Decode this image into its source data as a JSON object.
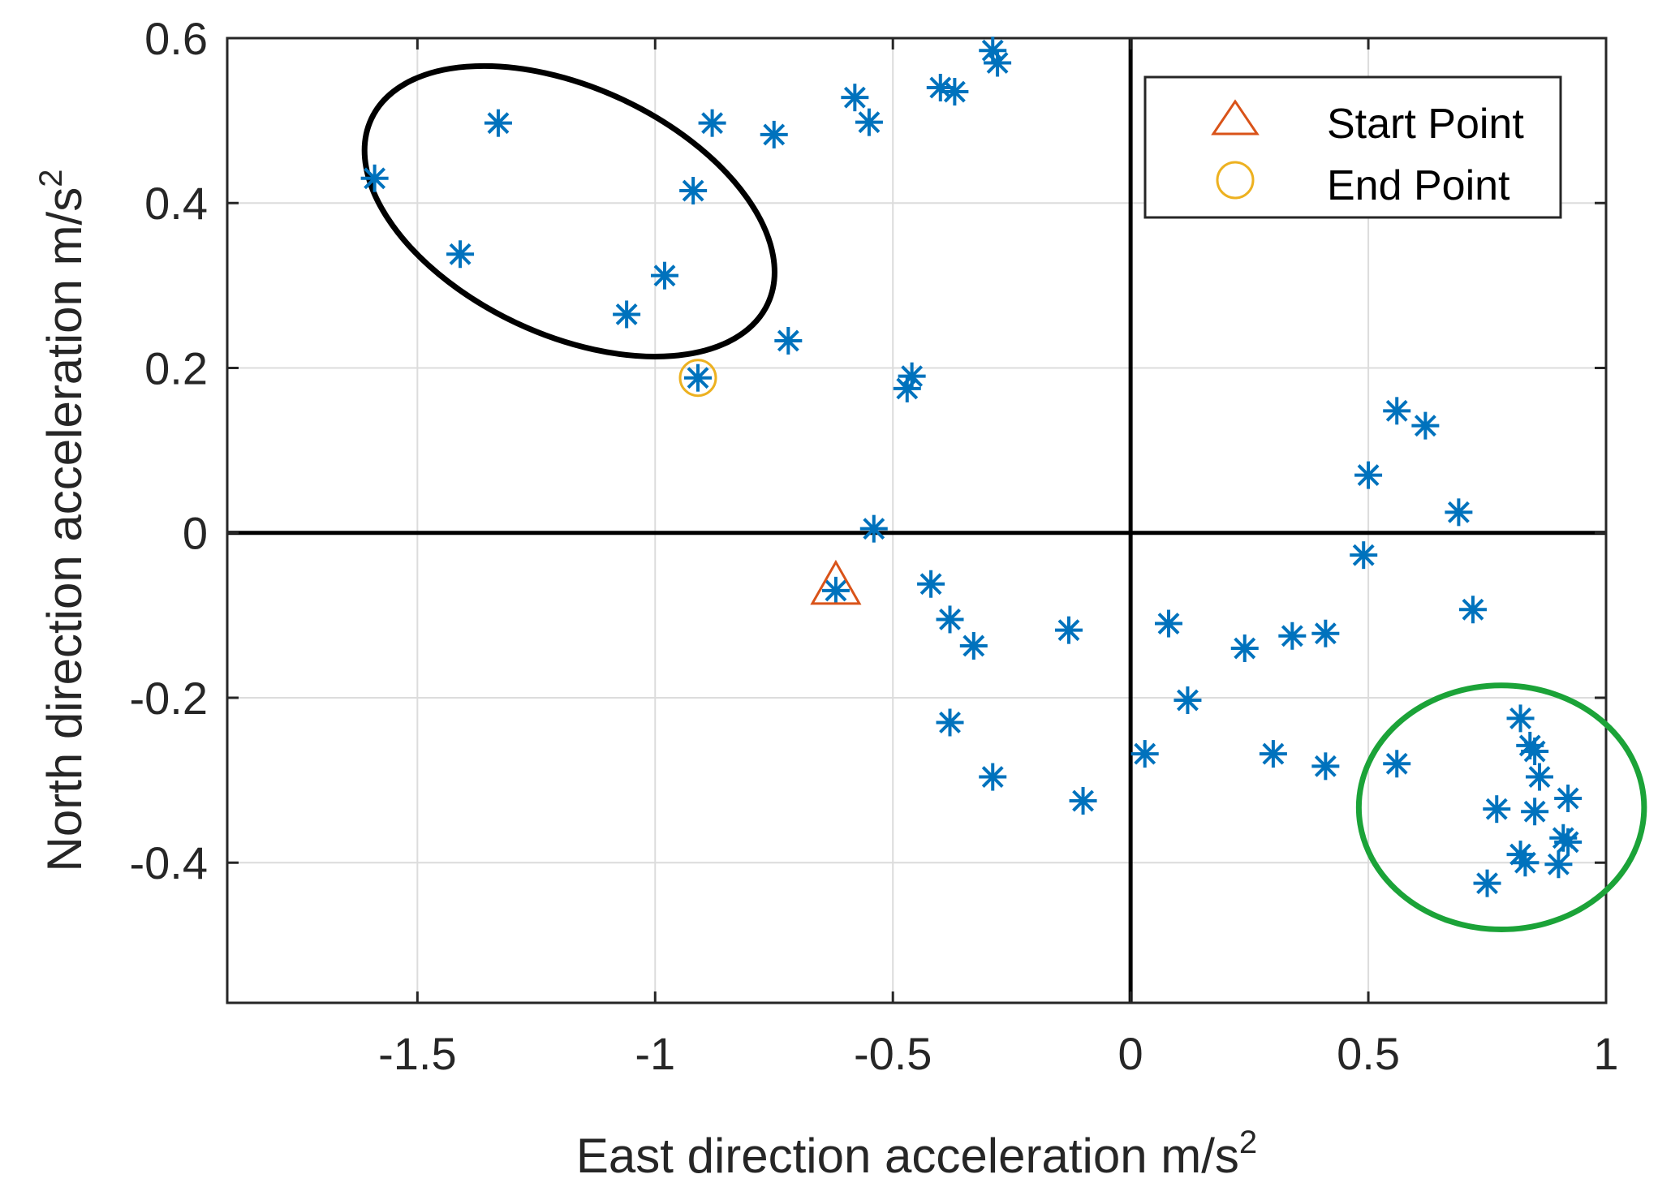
{
  "chart_data": {
    "type": "scatter",
    "title": "",
    "xlabel": "East direction acceleration m/s",
    "xlabel_sup": "2",
    "ylabel": "North direction acceleration m/s",
    "ylabel_sup": "2",
    "xlim": [
      -1.9,
      1.0
    ],
    "ylim": [
      -0.57,
      0.6
    ],
    "xticks": [
      -1.5,
      -1,
      -0.5,
      0,
      0.5,
      1
    ],
    "xtick_labels": [
      "-1.5",
      "-1",
      "-0.5",
      "0",
      "0.5",
      "1"
    ],
    "yticks": [
      -0.4,
      -0.2,
      0,
      0.2,
      0.4,
      0.6
    ],
    "ytick_labels": [
      "-0.4",
      "-0.2",
      "0",
      "0.2",
      "0.4",
      "0.6"
    ],
    "grid": true,
    "legend_position": "top-right",
    "series": [
      {
        "marker": "asterisk",
        "color": "#0072BD",
        "points": [
          [
            -1.59,
            0.43
          ],
          [
            -1.33,
            0.497
          ],
          [
            -1.41,
            0.338
          ],
          [
            -1.06,
            0.265
          ],
          [
            -0.98,
            0.312
          ],
          [
            -0.92,
            0.415
          ],
          [
            -0.88,
            0.497
          ],
          [
            -0.75,
            0.483
          ],
          [
            -0.58,
            0.528
          ],
          [
            -0.55,
            0.498
          ],
          [
            -0.4,
            0.54
          ],
          [
            -0.37,
            0.535
          ],
          [
            -0.29,
            0.585
          ],
          [
            -0.28,
            0.57
          ],
          [
            -0.72,
            0.233
          ],
          [
            -0.91,
            0.188
          ],
          [
            -0.47,
            0.175
          ],
          [
            -0.46,
            0.19
          ],
          [
            -0.54,
            0.005
          ],
          [
            -0.62,
            -0.07
          ],
          [
            -0.42,
            -0.062
          ],
          [
            -0.38,
            -0.105
          ],
          [
            -0.33,
            -0.137
          ],
          [
            -0.13,
            -0.118
          ],
          [
            -0.38,
            -0.23
          ],
          [
            -0.29,
            -0.296
          ],
          [
            -0.1,
            -0.325
          ],
          [
            0.03,
            -0.268
          ],
          [
            0.08,
            -0.11
          ],
          [
            0.12,
            -0.203
          ],
          [
            0.24,
            -0.14
          ],
          [
            0.3,
            -0.268
          ],
          [
            0.34,
            -0.125
          ],
          [
            0.41,
            -0.122
          ],
          [
            0.41,
            -0.283
          ],
          [
            0.49,
            -0.027
          ],
          [
            0.5,
            0.07
          ],
          [
            0.56,
            0.148
          ],
          [
            0.62,
            0.13
          ],
          [
            0.69,
            0.025
          ],
          [
            0.72,
            -0.093
          ],
          [
            0.56,
            -0.28
          ],
          [
            0.77,
            -0.335
          ],
          [
            0.82,
            -0.225
          ],
          [
            0.84,
            -0.258
          ],
          [
            0.85,
            -0.265
          ],
          [
            0.86,
            -0.296
          ],
          [
            0.85,
            -0.338
          ],
          [
            0.92,
            -0.322
          ],
          [
            0.82,
            -0.39
          ],
          [
            0.83,
            -0.4
          ],
          [
            0.91,
            -0.37
          ],
          [
            0.92,
            -0.375
          ],
          [
            0.9,
            -0.402
          ],
          [
            0.75,
            -0.425
          ]
        ]
      }
    ],
    "start_point": {
      "name": "Start Point",
      "x": -0.62,
      "y": -0.068,
      "marker": "triangle",
      "color": "#D95319"
    },
    "end_point": {
      "name": "End Point",
      "x": -0.91,
      "y": 0.188,
      "marker": "circle",
      "color": "#EDB120"
    },
    "annotations": [
      {
        "shape": "ellipse",
        "color": "#000000",
        "center": [
          -1.18,
          0.39
        ],
        "radii": [
          0.46,
          0.15
        ],
        "angle_deg": 25
      },
      {
        "shape": "ellipse",
        "color": "#1BA338",
        "center": [
          0.78,
          -0.333
        ],
        "radii": [
          0.3,
          0.148
        ],
        "angle_deg": 0
      }
    ]
  }
}
